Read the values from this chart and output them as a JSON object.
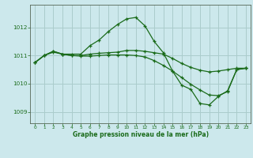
{
  "background_color": "#cce8ec",
  "grid_color": "#aacccc",
  "line_color": "#1a6b1a",
  "spine_color": "#556655",
  "title": "Graphe pression niveau de la mer (hPa)",
  "xlim": [
    -0.5,
    23.5
  ],
  "ylim": [
    1008.6,
    1012.8
  ],
  "yticks": [
    1009,
    1010,
    1011,
    1012
  ],
  "xticks": [
    0,
    1,
    2,
    3,
    4,
    5,
    6,
    7,
    8,
    9,
    10,
    11,
    12,
    13,
    14,
    15,
    16,
    17,
    18,
    19,
    20,
    21,
    22,
    23
  ],
  "series": [
    {
      "x": [
        0,
        1,
        2,
        3,
        4,
        5,
        6,
        7,
        8,
        9,
        10,
        11,
        12,
        13,
        14,
        15,
        16,
        17,
        18,
        19,
        20,
        21,
        22,
        23
      ],
      "y": [
        1010.75,
        1011.0,
        1011.15,
        1011.05,
        1011.05,
        1011.05,
        1011.35,
        1011.55,
        1011.85,
        1012.1,
        1012.3,
        1012.35,
        1012.05,
        1011.5,
        1011.1,
        1010.45,
        1009.95,
        1009.8,
        1009.3,
        1009.25,
        1009.55,
        1009.75,
        1010.5,
        1010.55
      ]
    },
    {
      "x": [
        0,
        1,
        2,
        3,
        4,
        5,
        6,
        7,
        8,
        9,
        10,
        11,
        12,
        13,
        14,
        15,
        16,
        17,
        18,
        19,
        20,
        21,
        22,
        23
      ],
      "y": [
        1010.75,
        1011.0,
        1011.15,
        1011.05,
        1011.0,
        1011.0,
        1011.05,
        1011.08,
        1011.1,
        1011.12,
        1011.18,
        1011.18,
        1011.15,
        1011.1,
        1011.05,
        1010.9,
        1010.72,
        1010.58,
        1010.48,
        1010.42,
        1010.45,
        1010.5,
        1010.55,
        1010.55
      ]
    },
    {
      "x": [
        0,
        1,
        2,
        3,
        4,
        5,
        6,
        7,
        8,
        9,
        10,
        11,
        12,
        13,
        14,
        15,
        16,
        17,
        18,
        19,
        20,
        21,
        22,
        23
      ],
      "y": [
        1010.75,
        1011.0,
        1011.12,
        1011.05,
        1011.0,
        1010.98,
        1010.98,
        1011.0,
        1011.02,
        1011.02,
        1011.02,
        1011.0,
        1010.95,
        1010.82,
        1010.65,
        1010.45,
        1010.22,
        1009.98,
        1009.78,
        1009.6,
        1009.58,
        1009.72,
        1010.5,
        1010.55
      ]
    }
  ]
}
